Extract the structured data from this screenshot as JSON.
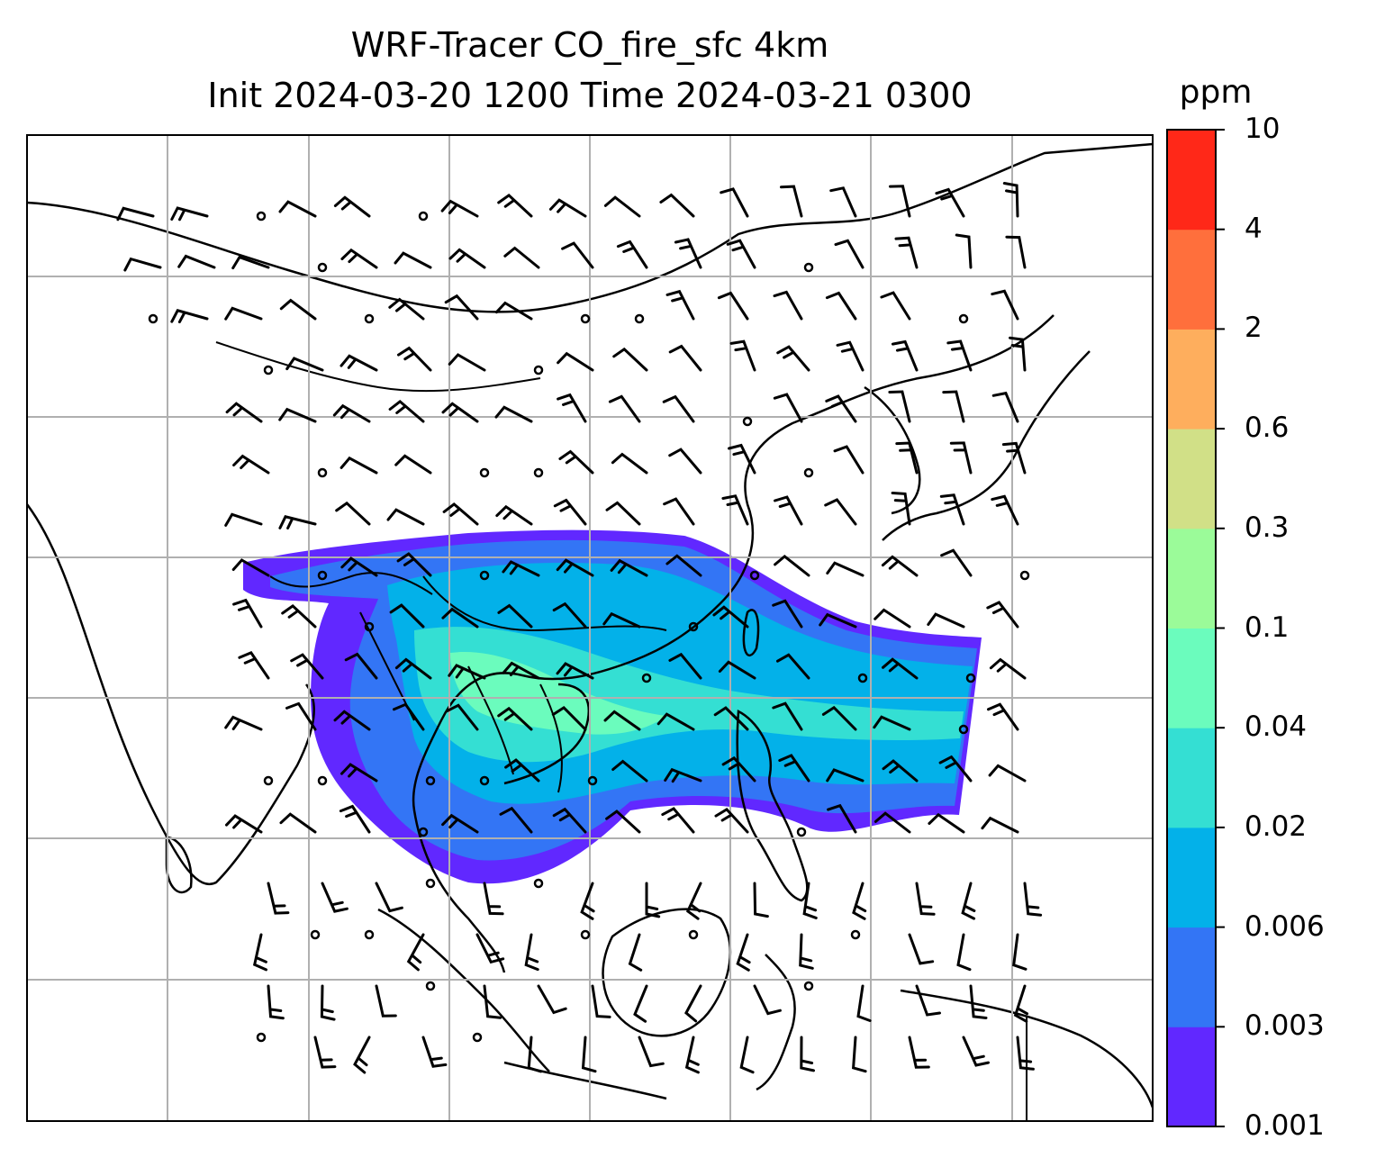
{
  "title": "WRF-Tracer CO_fire_sfc 4km",
  "subtitle": "Init 2024-03-20 1200 Time 2024-03-21 0300",
  "colorbar": {
    "unit": "ppm",
    "levels": [
      "0.001",
      "0.003",
      "0.006",
      "0.02",
      "0.04",
      "0.1",
      "0.3",
      "0.6",
      "2",
      "4",
      "10"
    ],
    "colors": [
      "#6128ff",
      "#3375f5",
      "#03b1e9",
      "#34dfd3",
      "#6bfcbd",
      "#9bfb99",
      "#d1e087",
      "#feae5d",
      "#ff6f3c",
      "#ff2818"
    ]
  },
  "map": {
    "variable": "CO_fire_sfc",
    "gridlines": true,
    "features": [
      "coastlines",
      "country-borders",
      "wind-barbs",
      "gridlines"
    ]
  }
}
